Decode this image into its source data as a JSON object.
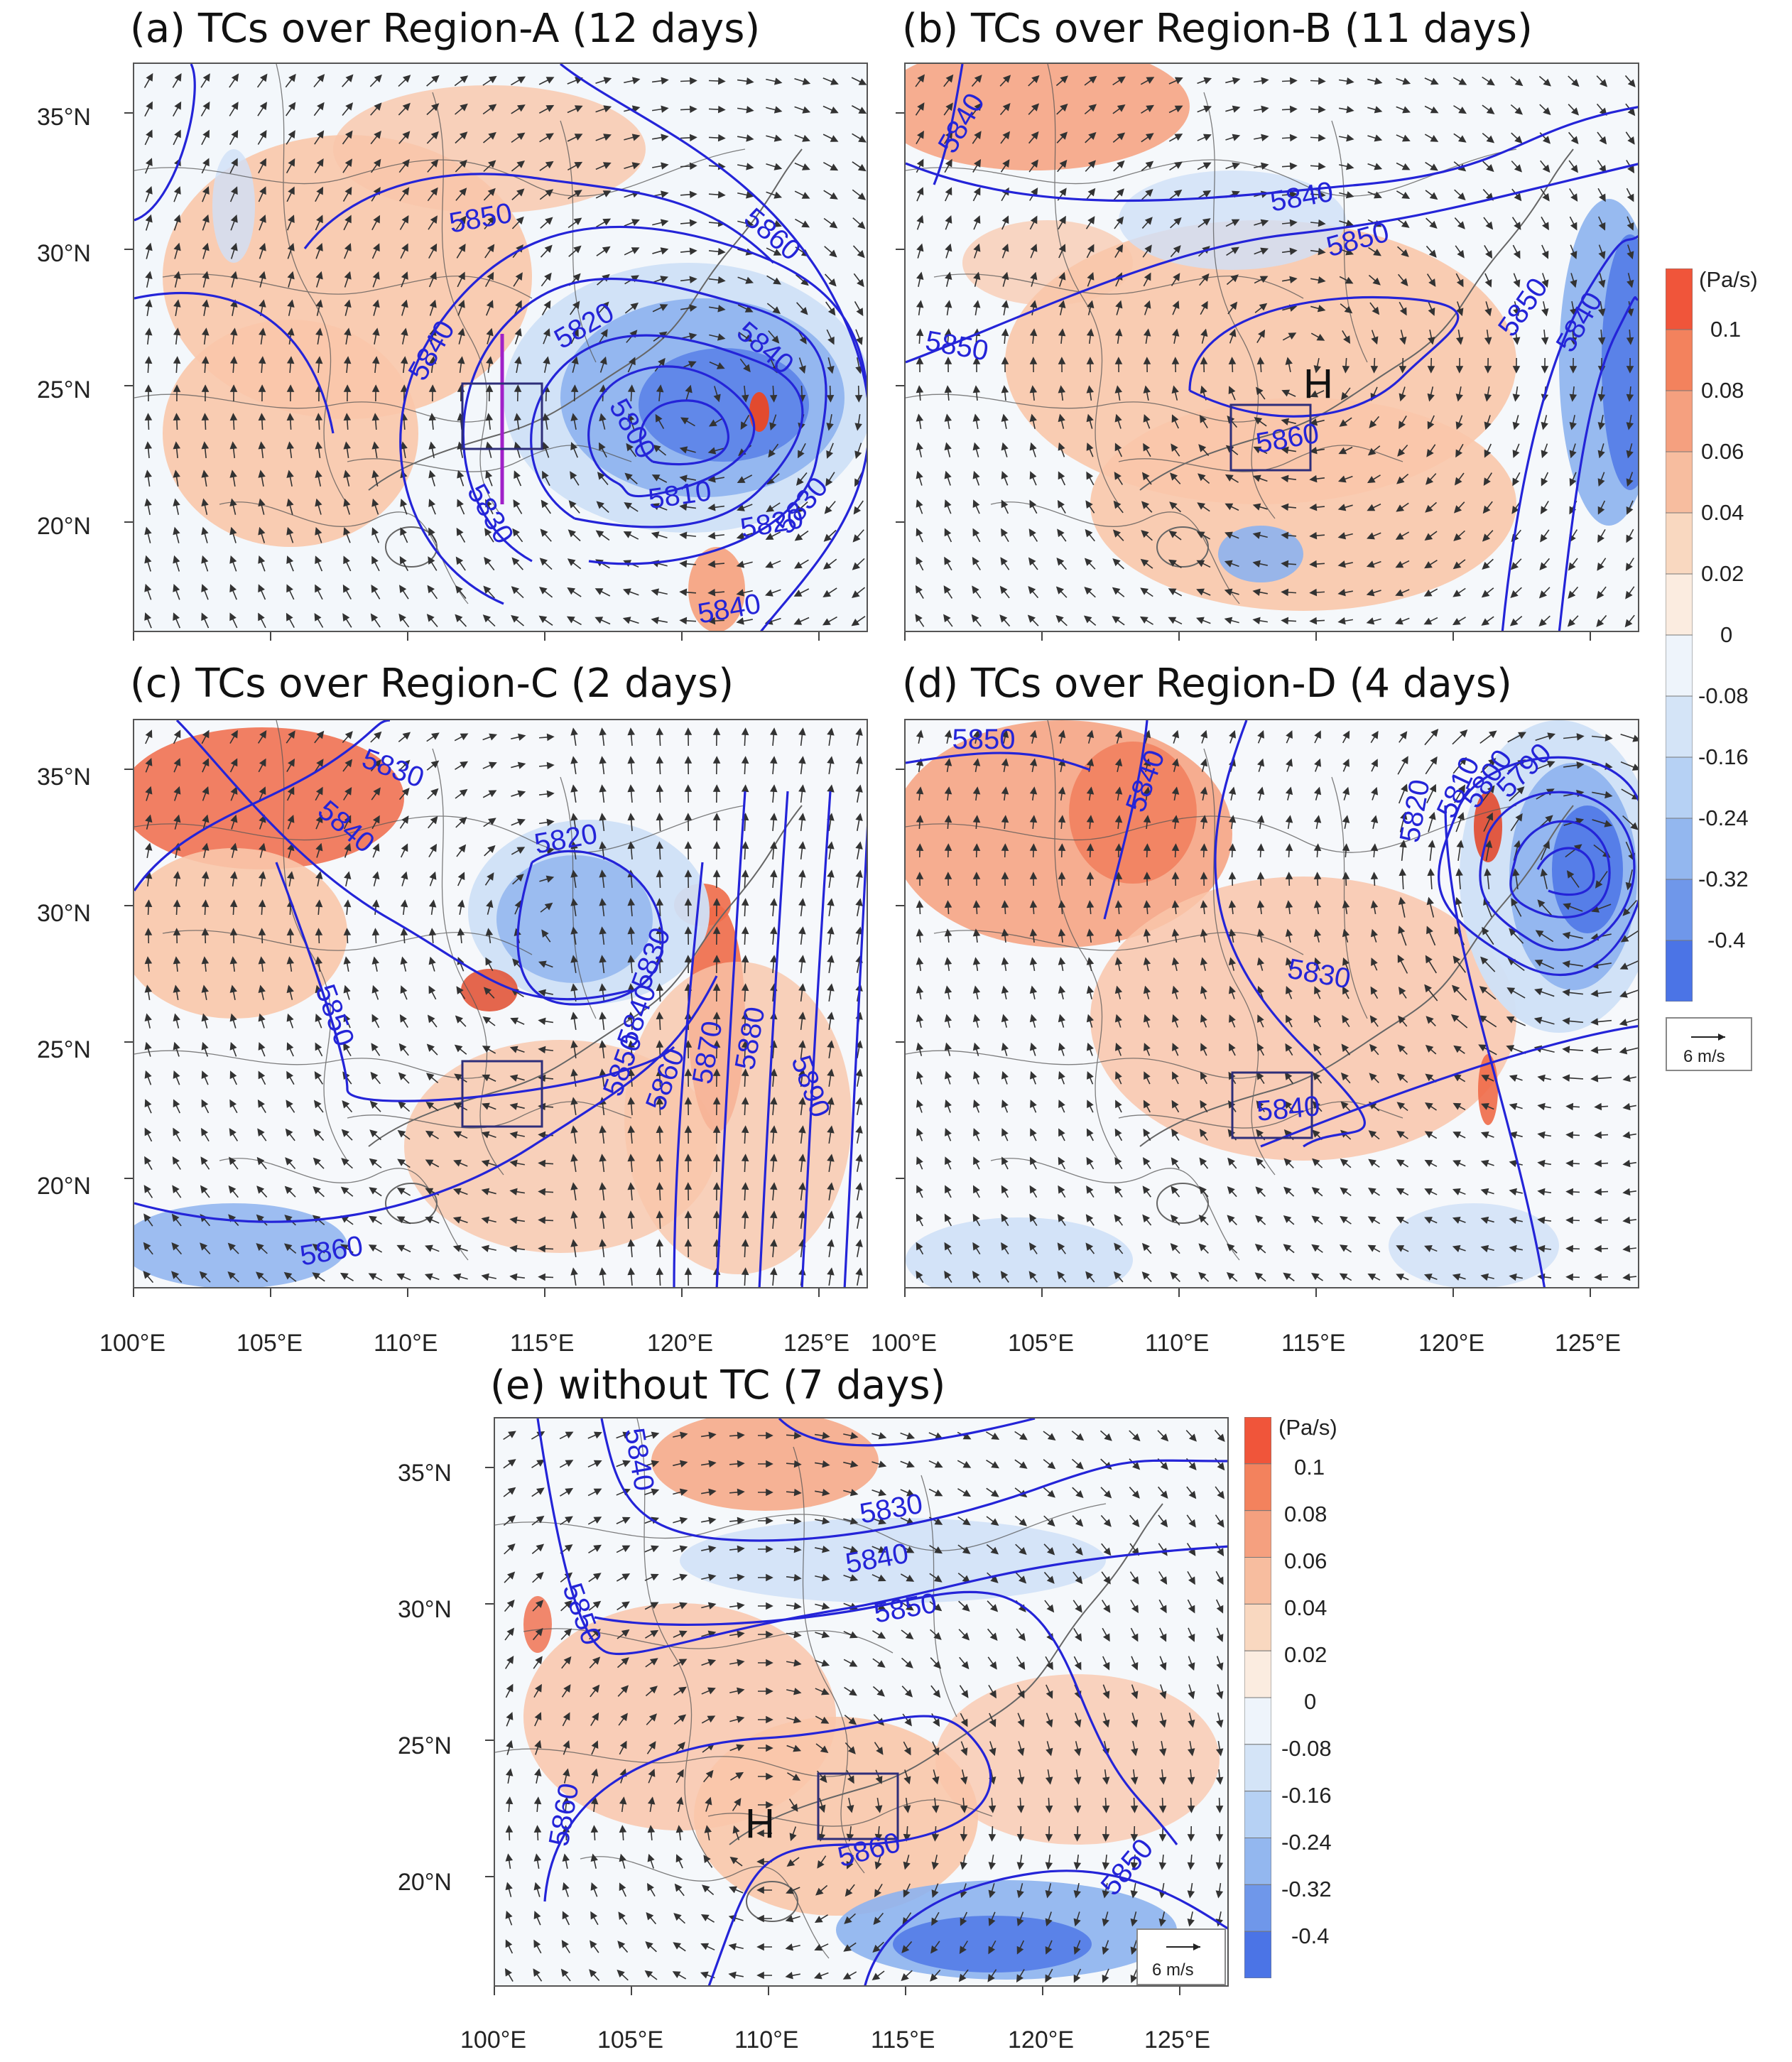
{
  "panels": [
    {
      "id": "a",
      "title": "(a) TCs over Region-A (12 days)",
      "contour_labels": [
        "5850",
        "5860",
        "5840",
        "5820",
        "5840",
        "5800",
        "5810",
        "5820",
        "5830",
        "5830",
        "5840"
      ],
      "center_marks": []
    },
    {
      "id": "b",
      "title": "(b) TCs over Region-B (11 days)",
      "contour_labels": [
        "5840",
        "5840",
        "5850",
        "5850",
        "5860",
        "5850",
        "5840"
      ],
      "center_marks": [
        "H"
      ]
    },
    {
      "id": "c",
      "title": "(c) TCs over Region-C (2 days)",
      "contour_labels": [
        "5830",
        "5840",
        "5820",
        "5850",
        "5830",
        "5840",
        "5850",
        "5860",
        "5870",
        "5880",
        "5890",
        "5860"
      ],
      "center_marks": []
    },
    {
      "id": "d",
      "title": "(d) TCs over Region-D (4 days)",
      "contour_labels": [
        "5850",
        "5840",
        "5820",
        "5830",
        "5840",
        "5810",
        "5800",
        "5790"
      ],
      "center_marks": []
    },
    {
      "id": "e",
      "title": "(e) without TC (7 days)",
      "contour_labels": [
        "5840",
        "5830",
        "5840",
        "5850",
        "5850",
        "5860",
        "5860",
        "5850"
      ],
      "center_marks": [
        "H"
      ]
    }
  ],
  "axes": {
    "lat_ticks": [
      "35°N",
      "30°N",
      "25°N",
      "20°N"
    ],
    "lon_ticks": [
      "100°E",
      "105°E",
      "110°E",
      "115°E",
      "120°E",
      "125°E"
    ]
  },
  "colorbar": {
    "unit": "(Pa/s)",
    "labels": [
      "0.1",
      "0.08",
      "0.06",
      "0.04",
      "0.02",
      "0",
      "-0.08",
      "-0.16",
      "-0.24",
      "-0.32",
      "-0.4"
    ],
    "colors": [
      "#f0553a",
      "#f3825d",
      "#f5a07f",
      "#f7bd9f",
      "#f9d8c0",
      "#fbece0",
      "#eef4fb",
      "#d4e4f7",
      "#b6d1f4",
      "#93b7ef",
      "#6f97ea",
      "#4b74e6"
    ]
  },
  "reference_vector": {
    "label": "6 m/s"
  },
  "colors": {
    "contour": "#2424d8",
    "section_line": "#a020c8",
    "box": "#2e2e7a",
    "wind": "#333333"
  }
}
